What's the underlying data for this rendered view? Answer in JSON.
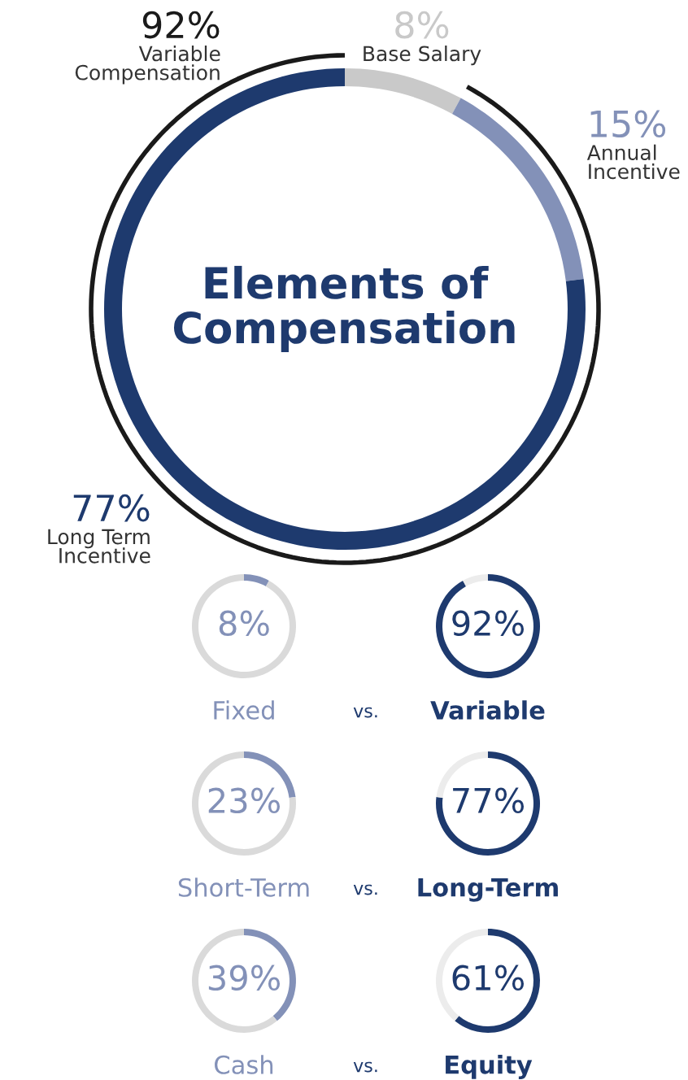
{
  "chart_data": [
    {
      "type": "donut",
      "title": "Elements of Compensation",
      "categories": [
        "Base Salary",
        "Annual Incentive",
        "Long Term Incentive"
      ],
      "values": [
        8,
        15,
        77
      ],
      "colors": [
        "#c9c9c9",
        "#8391b8",
        "#1e3a6e"
      ],
      "value_labels": [
        "8%",
        "15%",
        "77%"
      ],
      "annotations": [
        "92%",
        "Variable Compensation"
      ]
    },
    {
      "type": "donut",
      "title": "Fixed",
      "values": [
        8,
        92
      ],
      "colors": [
        "#8391b8",
        "#dadada"
      ],
      "value_labels": [
        "8%",
        null
      ]
    },
    {
      "type": "donut",
      "title": "Variable",
      "values": [
        92,
        8
      ],
      "colors": [
        "#1e3a6e",
        "#ececec"
      ],
      "value_labels": [
        "92%",
        null
      ],
      "annotations": [
        "vs."
      ]
    },
    {
      "type": "donut",
      "title": "Short-Term",
      "values": [
        23,
        77
      ],
      "colors": [
        "#8391b8",
        "#dadada"
      ],
      "value_labels": [
        "23%",
        null
      ]
    },
    {
      "type": "donut",
      "title": "Long-Term",
      "values": [
        77,
        23
      ],
      "colors": [
        "#1e3a6e",
        "#ececec"
      ],
      "value_labels": [
        "77%",
        null
      ],
      "annotations": [
        "vs."
      ]
    },
    {
      "type": "donut",
      "title": "Cash",
      "values": [
        39,
        61
      ],
      "colors": [
        "#8391b8",
        "#dadada"
      ],
      "value_labels": [
        "39%",
        null
      ]
    },
    {
      "type": "donut",
      "title": "Equity",
      "values": [
        61,
        39
      ],
      "colors": [
        "#1e3a6e",
        "#ececec"
      ],
      "value_labels": [
        "61%",
        null
      ],
      "annotations": [
        "vs."
      ]
    }
  ]
}
